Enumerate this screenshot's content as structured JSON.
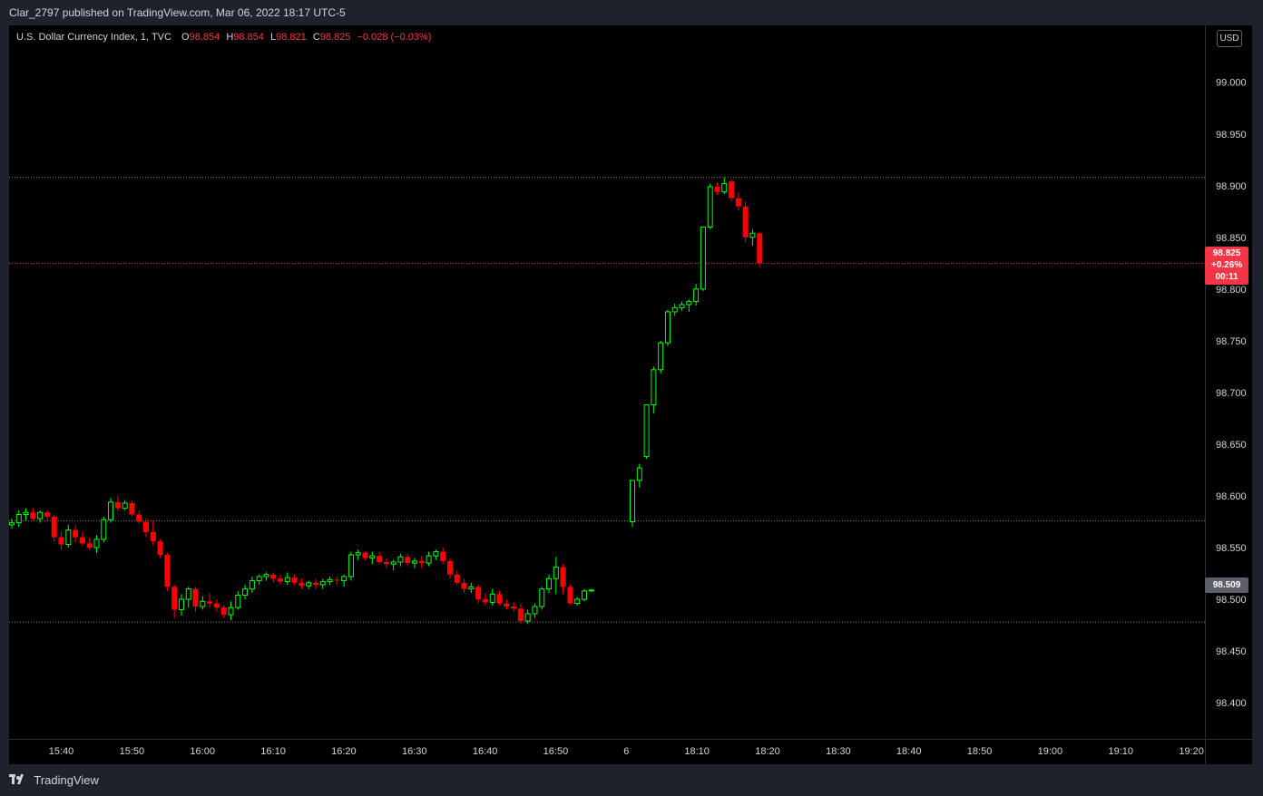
{
  "header": {
    "published_text": "Clar_2797 published on TradingView.com, Mar 06, 2022 18:17 UTC-5"
  },
  "legend": {
    "symbol": "U.S. Dollar Currency Index, 1, TVC",
    "o_key": "O",
    "o_val": "98.854",
    "h_key": "H",
    "h_val": "98.854",
    "l_key": "L",
    "l_val": "98.821",
    "c_key": "C",
    "c_val": "98.825",
    "change": "−0.028 (−0.03%)"
  },
  "currency_button": "USD",
  "last_price_tag": {
    "price": "98.825",
    "change": "+0.26%",
    "countdown": "00:11"
  },
  "ref_price_tag": "98.509",
  "footer": {
    "brand": "TradingView"
  },
  "colors": {
    "up": "#00ff00",
    "down": "#ff0000",
    "background": "#000000",
    "last_price_line": "#f23645"
  },
  "chart_data": {
    "type": "candlestick",
    "title": "U.S. Dollar Currency Index, 1, TVC",
    "ylim": [
      98.365,
      99.055
    ],
    "y_ticks": [
      "99.000",
      "98.950",
      "98.900",
      "98.850",
      "98.800",
      "98.750",
      "98.700",
      "98.650",
      "98.600",
      "98.550",
      "98.500",
      "98.450",
      "98.400"
    ],
    "x_ticks": [
      "15:40",
      "15:50",
      "16:00",
      "16:10",
      "16:20",
      "16:30",
      "16:40",
      "16:50",
      "6",
      "18:10",
      "18:20",
      "18:30",
      "18:40",
      "18:50",
      "19:00",
      "19:10",
      "19:20"
    ],
    "horizontal_levels": [
      98.908,
      98.576,
      98.478
    ],
    "last_price": 98.825,
    "ref_price": 98.509,
    "grid": false,
    "candles_session1": [
      [
        98.572,
        98.578,
        98.568,
        98.574
      ],
      [
        98.574,
        98.586,
        98.57,
        98.582
      ],
      [
        98.582,
        98.588,
        98.576,
        98.584
      ],
      [
        98.584,
        98.588,
        98.576,
        98.578
      ],
      [
        98.578,
        98.586,
        98.574,
        98.584
      ],
      [
        98.584,
        98.586,
        98.576,
        98.58
      ],
      [
        98.58,
        98.582,
        98.556,
        98.56
      ],
      [
        98.56,
        98.566,
        98.548,
        98.553
      ],
      [
        98.553,
        98.572,
        98.55,
        98.567
      ],
      [
        98.567,
        98.572,
        98.555,
        98.56
      ],
      [
        98.56,
        98.566,
        98.552,
        98.554
      ],
      [
        98.554,
        98.56,
        98.548,
        98.55
      ],
      [
        98.55,
        98.562,
        98.545,
        98.558
      ],
      [
        98.558,
        98.58,
        98.555,
        98.577
      ],
      [
        98.577,
        98.598,
        98.574,
        98.594
      ],
      [
        98.594,
        98.6,
        98.585,
        98.588
      ],
      [
        98.588,
        98.596,
        98.586,
        98.593
      ],
      [
        98.593,
        98.596,
        98.58,
        98.582
      ],
      [
        98.582,
        98.586,
        98.573,
        98.575
      ],
      [
        98.575,
        98.578,
        98.56,
        98.565
      ],
      [
        98.565,
        98.576,
        98.552,
        98.556
      ],
      [
        98.556,
        98.558,
        98.54,
        98.543
      ],
      [
        98.543,
        98.545,
        98.508,
        98.512
      ],
      [
        98.512,
        98.514,
        98.482,
        98.49
      ],
      [
        98.49,
        98.505,
        98.484,
        98.5
      ],
      [
        98.5,
        98.512,
        98.492,
        98.51
      ],
      [
        98.51,
        98.512,
        98.488,
        98.493
      ],
      [
        98.493,
        98.503,
        98.49,
        98.498
      ],
      [
        98.498,
        98.506,
        98.492,
        98.496
      ],
      [
        98.496,
        98.5,
        98.488,
        98.492
      ],
      [
        98.492,
        98.494,
        98.482,
        98.485
      ],
      [
        98.485,
        98.498,
        98.48,
        98.492
      ],
      [
        98.492,
        98.508,
        98.49,
        98.504
      ],
      [
        98.504,
        98.514,
        98.5,
        98.51
      ],
      [
        98.51,
        98.522,
        98.506,
        98.518
      ],
      [
        98.518,
        98.524,
        98.514,
        98.522
      ],
      [
        98.522,
        98.526,
        98.518,
        98.524
      ],
      [
        98.524,
        98.526,
        98.516,
        98.52
      ],
      [
        98.52,
        98.524,
        98.514,
        98.517
      ],
      [
        98.517,
        98.526,
        98.514,
        98.521
      ],
      [
        98.521,
        98.524,
        98.514,
        98.516
      ],
      [
        98.516,
        98.52,
        98.51,
        98.513
      ],
      [
        98.513,
        98.518,
        98.51,
        98.516
      ],
      [
        98.516,
        98.52,
        98.51,
        98.514
      ],
      [
        98.514,
        98.52,
        98.51,
        98.517
      ],
      [
        98.517,
        98.522,
        98.514,
        98.519
      ],
      [
        98.519,
        98.522,
        98.514,
        98.518
      ],
      [
        98.518,
        98.524,
        98.512,
        98.522
      ],
      [
        98.522,
        98.546,
        98.518,
        98.543
      ],
      [
        98.543,
        98.548,
        98.538,
        98.545
      ],
      [
        98.545,
        98.546,
        98.538,
        98.54
      ],
      [
        98.54,
        98.546,
        98.534,
        98.542
      ],
      [
        98.542,
        98.546,
        98.534,
        98.536
      ],
      [
        98.536,
        98.54,
        98.53,
        98.534
      ],
      [
        98.534,
        98.538,
        98.528,
        98.536
      ],
      [
        98.536,
        98.544,
        98.532,
        98.541
      ],
      [
        98.541,
        98.544,
        98.532,
        98.535
      ],
      [
        98.535,
        98.54,
        98.53,
        98.537
      ],
      [
        98.537,
        98.542,
        98.53,
        98.535
      ],
      [
        98.535,
        98.546,
        98.532,
        98.542
      ],
      [
        98.542,
        98.548,
        98.538,
        98.546
      ],
      [
        98.546,
        98.55,
        98.534,
        98.537
      ],
      [
        98.537,
        98.54,
        98.52,
        98.524
      ],
      [
        98.524,
        98.528,
        98.514,
        98.516
      ],
      [
        98.516,
        98.52,
        98.506,
        98.51
      ],
      [
        98.51,
        98.516,
        98.506,
        98.512
      ],
      [
        98.512,
        98.514,
        98.496,
        98.5
      ],
      [
        98.5,
        98.506,
        98.494,
        98.497
      ],
      [
        98.497,
        98.51,
        98.494,
        98.505
      ],
      [
        98.505,
        98.508,
        98.494,
        98.496
      ],
      [
        98.496,
        98.5,
        98.49,
        98.493
      ],
      [
        98.493,
        98.497,
        98.488,
        98.491
      ],
      [
        98.491,
        98.496,
        98.476,
        98.479
      ],
      [
        98.479,
        98.49,
        98.476,
        98.486
      ],
      [
        98.486,
        98.496,
        98.482,
        98.493
      ],
      [
        98.493,
        98.512,
        98.49,
        98.51
      ],
      [
        98.51,
        98.524,
        98.506,
        98.52
      ],
      [
        98.52,
        98.541,
        98.505,
        98.531
      ],
      [
        98.531,
        98.534,
        98.505,
        98.512
      ],
      [
        98.512,
        98.514,
        98.495,
        98.496
      ],
      [
        98.496,
        98.502,
        98.494,
        98.5
      ],
      [
        98.5,
        98.51,
        98.498,
        98.508
      ],
      [
        98.508,
        98.51,
        98.507,
        98.509
      ]
    ],
    "candles_session2": [
      [
        98.575,
        98.615,
        98.57,
        98.615
      ],
      [
        98.615,
        98.631,
        98.608,
        98.627
      ],
      [
        98.638,
        98.688,
        98.636,
        98.688
      ],
      [
        98.688,
        98.725,
        98.68,
        98.722
      ],
      [
        98.722,
        98.75,
        98.718,
        98.748
      ],
      [
        98.748,
        98.78,
        98.745,
        98.778
      ],
      [
        98.778,
        98.786,
        98.774,
        98.782
      ],
      [
        98.782,
        98.788,
        98.779,
        98.785
      ],
      [
        98.785,
        98.79,
        98.778,
        98.788
      ],
      [
        98.788,
        98.805,
        98.784,
        98.8
      ],
      [
        98.8,
        98.86,
        98.798,
        98.86
      ],
      [
        98.86,
        98.902,
        98.858,
        98.899
      ],
      [
        98.899,
        98.903,
        98.891,
        98.894
      ],
      [
        98.894,
        98.908,
        98.892,
        98.902
      ],
      [
        98.904,
        98.906,
        98.885,
        98.888
      ],
      [
        98.888,
        98.894,
        98.876,
        98.88
      ],
      [
        98.88,
        98.884,
        98.845,
        98.85
      ],
      [
        98.85,
        98.858,
        98.842,
        98.854
      ],
      [
        98.854,
        98.854,
        98.821,
        98.825
      ]
    ]
  }
}
